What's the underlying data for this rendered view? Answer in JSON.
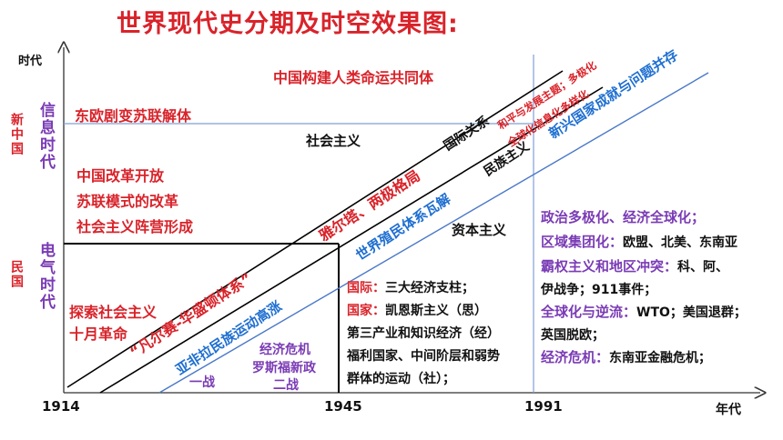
{
  "title": "世界现代史分期及时空效果图:",
  "axes": {
    "y_label": "时代",
    "x_label": "年代",
    "years": [
      "1914",
      "1945",
      "1991"
    ]
  },
  "eras": {
    "xin_zhongguo": "新中国",
    "xinxi_shidai": "信息时代",
    "minguo": "民国",
    "dianqi_shidai": "电气时代"
  },
  "left_events": {
    "community": "中国构建人类命运共同体",
    "east_europe": "东欧剧变苏联解体",
    "reform": "中国改革开放",
    "soviet_reform": "苏联模式的改革",
    "socialist_camp": "社会主义阵营形成",
    "explore": "探索社会主义",
    "october": "十月革命"
  },
  "regions": {
    "socialism": "社会主义",
    "capitalism": "资本主义",
    "international": "国际关系",
    "nationalism": "民族主义"
  },
  "diagonals": {
    "peace": "和平与发展主题；多极化",
    "globalization": "全球化信息化多样化",
    "newly": "新兴国家成就与问题并存",
    "yalta": "雅尔塔、两极格局",
    "colonial": "世界殖民体系瓦解",
    "versailles": "“凡尔赛-华盛顿体系”",
    "asia_africa": "亚非拉民族运动高涨"
  },
  "period_labels": {
    "ww1": "一战",
    "crisis": "经济危机",
    "new_deal": "罗斯福新政",
    "ww2": "二战"
  },
  "middle_box": {
    "l1_key": "国际：",
    "l1_val": "三大经济支柱；",
    "l2_key": "国家：",
    "l2_val": "凯恩斯主义（思）",
    "l3": "第三产业和知识经济（经）",
    "l4": "福利国家、中间阶层和弱势",
    "l5": "群体的运动（社）；"
  },
  "right_box": {
    "r1": "政治多极化、经济全球化；",
    "r2_key": "区域集团化：",
    "r2_val": "欧盟、北美、东南亚",
    "r3_key": "霸权主义和地区冲突：",
    "r3_val": "科、阿、",
    "r4": "伊战争；911事件；",
    "r5_key": "全球化与逆流：",
    "r5_val": "WTO；美国退群；",
    "r6": "英国脱欧；",
    "r7_key": "经济危机：",
    "r7_val": "东南亚金融危机；"
  },
  "colors": {
    "red": "#d9232a",
    "purple": "#7a3bb5",
    "blue": "#1f6fd1",
    "line_blue": "#4a78c8"
  }
}
